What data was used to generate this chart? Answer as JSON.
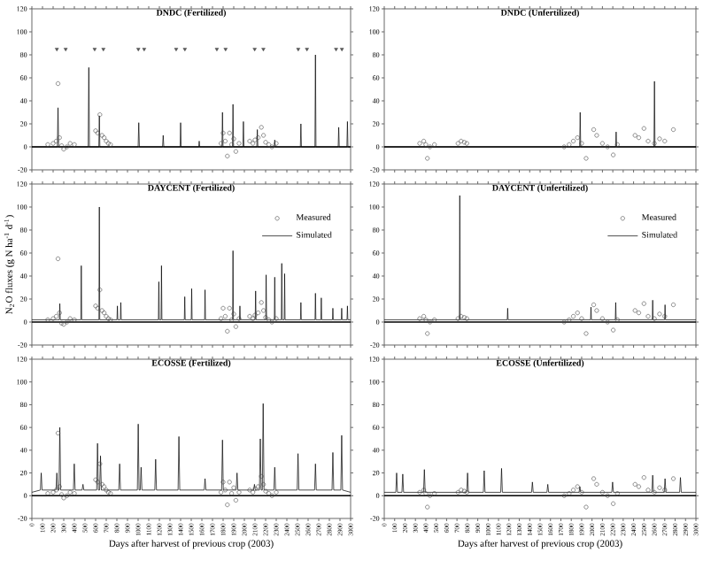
{
  "chart_data": [
    {
      "type": "line",
      "title": "DNDC (Fertilized)",
      "xlim": [
        0,
        3000
      ],
      "ylim": [
        -20,
        120
      ],
      "xticks": [
        0,
        100,
        200,
        300,
        400,
        500,
        600,
        700,
        800,
        900,
        1000,
        1100,
        1200,
        1300,
        1400,
        1500,
        1600,
        1700,
        1800,
        1900,
        2000,
        2100,
        2200,
        2300,
        2400,
        2500,
        2600,
        2700,
        2800,
        2900,
        3000
      ],
      "yticks": [
        -20,
        0,
        20,
        40,
        60,
        80,
        100,
        120
      ],
      "tick_labels": "y",
      "ref_lines": [
        {
          "axis": "y",
          "value": 0
        }
      ],
      "series": [
        {
          "type": "scatter",
          "marker": "triangle",
          "color": "#555555",
          "x": [
            235,
            318,
            591,
            673,
            1002,
            1057,
            1358,
            1440,
            1741,
            1823,
            2097,
            2179,
            2507,
            2589,
            2863,
            2918
          ],
          "values": [
            85,
            85,
            85,
            85,
            85,
            85,
            85,
            85,
            85,
            85,
            85,
            85,
            85,
            85,
            85,
            85
          ]
        },
        {
          "type": "scatter",
          "marker": "circle",
          "color": "#444444",
          "x": [
            150,
            200,
            230,
            246,
            260,
            280,
            300,
            330,
            360,
            400,
            600,
            620,
            640,
            660,
            680,
            700,
            720,
            740,
            1780,
            1800,
            1820,
            1840,
            1860,
            1880,
            1900,
            1920,
            1950,
            2050,
            2080,
            2100,
            2130,
            2160,
            2180,
            2200,
            2230,
            2260,
            2300
          ],
          "values": [
            2,
            3,
            5,
            55,
            8,
            1,
            -2,
            0,
            3,
            2,
            14,
            12,
            28,
            10,
            8,
            5,
            3,
            2,
            3,
            12,
            5,
            -8,
            12,
            2,
            7,
            -4,
            3,
            5,
            3,
            6,
            8,
            17,
            10,
            4,
            2,
            0,
            3
          ]
        },
        {
          "type": "line",
          "color": "#000000",
          "x": [
            0,
            240,
            246,
            252,
            530,
            536,
            542,
            630,
            635,
            640,
            1000,
            1006,
            1012,
            1230,
            1236,
            1242,
            1395,
            1400,
            1405,
            1570,
            1575,
            1580,
            1789,
            1794,
            1799,
            1888,
            1893,
            1898,
            1986,
            1991,
            1996,
            2117,
            2122,
            2127,
            2281,
            2286,
            2291,
            2527,
            2532,
            2537,
            2664,
            2669,
            2674,
            2883,
            2888,
            2893,
            2965,
            2970,
            2975,
            3000
          ],
          "values": [
            0,
            0,
            34,
            0,
            0,
            69,
            0,
            0,
            27,
            0,
            0,
            21,
            0,
            0,
            10,
            0,
            0,
            21,
            0,
            0,
            5,
            0,
            0,
            30,
            0,
            0,
            37,
            0,
            0,
            22,
            0,
            0,
            15,
            0,
            0,
            6,
            0,
            0,
            20,
            0,
            0,
            80,
            0,
            0,
            17,
            0,
            0,
            22,
            0,
            0
          ]
        }
      ]
    },
    {
      "type": "line",
      "title": "DNDC (Unfertilized)",
      "xlim": [
        0,
        3000
      ],
      "ylim": [
        -20,
        120
      ],
      "xticks": [
        0,
        100,
        200,
        300,
        400,
        500,
        600,
        700,
        800,
        900,
        1000,
        1100,
        1200,
        1300,
        1400,
        1500,
        1600,
        1700,
        1800,
        1900,
        2000,
        2100,
        2200,
        2300,
        2400,
        2500,
        2600,
        2700,
        2800,
        2900,
        3000
      ],
      "yticks": [
        -20,
        0,
        20,
        40,
        60,
        80,
        100,
        120
      ],
      "tick_labels": "y",
      "ref_lines": [
        {
          "axis": "y",
          "value": 0
        }
      ],
      "series": [
        {
          "type": "scatter",
          "marker": "circle",
          "color": "#444444",
          "x": [
            341,
            380,
            400,
            415,
            440,
            483,
            710,
            740,
            770,
            795,
            1732,
            1780,
            1820,
            1860,
            1900,
            1943,
            2016,
            2045,
            2100,
            2150,
            2204,
            2244,
            2414,
            2450,
            2500,
            2540,
            2600,
            2650,
            2700,
            2783
          ],
          "values": [
            3,
            5,
            2,
            -10,
            0,
            2,
            3,
            5,
            4,
            3,
            0,
            2,
            5,
            8,
            3,
            -10,
            15,
            10,
            3,
            0,
            -7,
            2,
            10,
            8,
            16,
            5,
            3,
            7,
            5,
            15
          ]
        },
        {
          "type": "line",
          "color": "#000000",
          "x": [
            0,
            1881,
            1886,
            1891,
            2227,
            2232,
            2237,
            2596,
            2601,
            2606,
            3000
          ],
          "values": [
            0,
            0,
            30,
            0,
            0,
            13,
            0,
            0,
            57,
            0,
            0
          ]
        }
      ]
    },
    {
      "type": "line",
      "title": "DAYCENT (Fertilized)",
      "ylabel": "N$_{2}$O fluxes (g N ha$^{-1}$ d$^{-1}$)",
      "xlim": [
        0,
        3000
      ],
      "ylim": [
        -20,
        120
      ],
      "xticks": [
        0,
        100,
        200,
        300,
        400,
        500,
        600,
        700,
        800,
        900,
        1000,
        1100,
        1200,
        1300,
        1400,
        1500,
        1600,
        1700,
        1800,
        1900,
        2000,
        2100,
        2200,
        2300,
        2400,
        2500,
        2600,
        2700,
        2800,
        2900,
        3000
      ],
      "yticks": [
        -20,
        0,
        20,
        40,
        60,
        80,
        100,
        120
      ],
      "tick_labels": "y",
      "legend": "top right",
      "ref_lines": [
        {
          "axis": "y",
          "value": 0
        }
      ],
      "series": [
        {
          "name": "Measured",
          "type": "scatter",
          "marker": "circle",
          "color": "#444444",
          "x": [
            150,
            200,
            230,
            246,
            260,
            280,
            300,
            330,
            360,
            400,
            600,
            620,
            640,
            660,
            680,
            700,
            720,
            740,
            1780,
            1800,
            1820,
            1840,
            1860,
            1880,
            1900,
            1920,
            1950,
            2050,
            2080,
            2100,
            2130,
            2160,
            2180,
            2200,
            2230,
            2260,
            2300
          ],
          "values": [
            2,
            3,
            5,
            55,
            8,
            -1,
            -2,
            0,
            3,
            2,
            14,
            12,
            28,
            10,
            8,
            5,
            3,
            2,
            3,
            12,
            5,
            -8,
            12,
            2,
            7,
            -4,
            3,
            5,
            3,
            6,
            8,
            17,
            10,
            4,
            2,
            0,
            3
          ]
        },
        {
          "name": "Simulated",
          "type": "line",
          "color": "#000000",
          "x": [
            0,
            259,
            263,
            267,
            461,
            465,
            469,
            631,
            635,
            639,
            801,
            805,
            809,
            833,
            837,
            841,
            1191,
            1195,
            1199,
            1216,
            1220,
            1224,
            1435,
            1439,
            1443,
            1500,
            1504,
            1508,
            1626,
            1630,
            1634,
            1889,
            1893,
            1897,
            1954,
            1958,
            1962,
            2102,
            2106,
            2110,
            2201,
            2205,
            2209,
            2282,
            2286,
            2290,
            2348,
            2352,
            2356,
            2375,
            2379,
            2383,
            2528,
            2532,
            2536,
            2665,
            2669,
            2673,
            2720,
            2724,
            2728,
            2829,
            2833,
            2837,
            2912,
            2916,
            2920,
            2966,
            2970,
            2974,
            3000
          ],
          "values": [
            2,
            2,
            16,
            2,
            2,
            49,
            2,
            2,
            100,
            2,
            2,
            14,
            2,
            2,
            17,
            2,
            2,
            35,
            2,
            2,
            49,
            2,
            2,
            22,
            2,
            2,
            29,
            2,
            2,
            28,
            2,
            2,
            62,
            2,
            2,
            14,
            2,
            2,
            27,
            2,
            2,
            41,
            2,
            2,
            39,
            2,
            2,
            51,
            2,
            2,
            42,
            2,
            2,
            17,
            2,
            2,
            25,
            2,
            2,
            21,
            2,
            2,
            12,
            2,
            2,
            12,
            2,
            2,
            14,
            2,
            2
          ]
        }
      ]
    },
    {
      "type": "line",
      "title": "DAYCENT (Unfertilized)",
      "xlim": [
        0,
        3000
      ],
      "ylim": [
        -20,
        120
      ],
      "xticks": [
        0,
        100,
        200,
        300,
        400,
        500,
        600,
        700,
        800,
        900,
        1000,
        1100,
        1200,
        1300,
        1400,
        1500,
        1600,
        1700,
        1800,
        1900,
        2000,
        2100,
        2200,
        2300,
        2400,
        2500,
        2600,
        2700,
        2800,
        2900,
        3000
      ],
      "yticks": [
        -20,
        0,
        20,
        40,
        60,
        80,
        100,
        120
      ],
      "tick_labels": "y",
      "legend": "top right",
      "ref_lines": [
        {
          "axis": "y",
          "value": 0
        }
      ],
      "series": [
        {
          "name": "Measured",
          "type": "scatter",
          "marker": "circle",
          "color": "#444444",
          "x": [
            341,
            380,
            400,
            415,
            440,
            483,
            710,
            740,
            770,
            795,
            1732,
            1780,
            1820,
            1860,
            1900,
            1943,
            2016,
            2045,
            2100,
            2150,
            2204,
            2244,
            2414,
            2450,
            2500,
            2540,
            2600,
            2650,
            2700,
            2783
          ],
          "values": [
            3,
            5,
            2,
            -10,
            0,
            2,
            3,
            5,
            4,
            3,
            0,
            2,
            5,
            8,
            3,
            -10,
            15,
            10,
            3,
            0,
            -7,
            2,
            10,
            8,
            16,
            5,
            3,
            7,
            5,
            15
          ]
        },
        {
          "name": "Simulated",
          "type": "line",
          "color": "#000000",
          "x": [
            0,
            723,
            727,
            731,
            1184,
            1188,
            1192,
            1986,
            1990,
            1994,
            2224,
            2228,
            2232,
            2580,
            2584,
            2588,
            2699,
            2703,
            2707,
            3000
          ],
          "values": [
            2,
            2,
            110,
            2,
            2,
            12,
            2,
            2,
            13,
            2,
            2,
            17,
            2,
            2,
            19,
            2,
            2,
            15,
            2,
            2
          ]
        }
      ]
    },
    {
      "type": "line",
      "title": "ECOSSE (Fertilized)",
      "xlabel": "Days after harvest of previous crop (2003)",
      "xlim": [
        0,
        3000
      ],
      "ylim": [
        -20,
        120
      ],
      "xticks": [
        0,
        100,
        200,
        300,
        400,
        500,
        600,
        700,
        800,
        900,
        1000,
        1100,
        1200,
        1300,
        1400,
        1500,
        1600,
        1700,
        1800,
        1900,
        2000,
        2100,
        2200,
        2300,
        2400,
        2500,
        2600,
        2700,
        2800,
        2900,
        3000
      ],
      "yticks": [
        -20,
        0,
        20,
        40,
        60,
        80,
        100,
        120
      ],
      "ref_lines": [
        {
          "axis": "y",
          "value": 0
        }
      ],
      "series": [
        {
          "type": "scatter",
          "marker": "circle",
          "color": "#444444",
          "x": [
            150,
            200,
            230,
            246,
            260,
            280,
            300,
            330,
            360,
            400,
            600,
            620,
            640,
            660,
            680,
            700,
            720,
            740,
            1780,
            1800,
            1820,
            1840,
            1860,
            1880,
            1900,
            1920,
            1950,
            2050,
            2080,
            2100,
            2130,
            2160,
            2180,
            2200,
            2230,
            2260,
            2300
          ],
          "values": [
            2,
            3,
            5,
            55,
            8,
            1,
            -2,
            0,
            3,
            2,
            14,
            12,
            28,
            10,
            8,
            5,
            3,
            2,
            3,
            12,
            5,
            -8,
            12,
            2,
            7,
            -4,
            3,
            5,
            3,
            6,
            8,
            17,
            10,
            4,
            2,
            0,
            3
          ]
        },
        {
          "type": "line",
          "color": "#000000",
          "x": [
            0,
            80,
            88,
            96,
            227,
            235,
            243,
            255,
            263,
            271,
            391,
            399,
            407,
            473,
            481,
            489,
            610,
            618,
            626,
            638,
            646,
            654,
            818,
            826,
            834,
            993,
            1001,
            1009,
            1020,
            1028,
            1036,
            1157,
            1165,
            1173,
            1376,
            1384,
            1392,
            1622,
            1630,
            1638,
            1786,
            1794,
            1802,
            1923,
            1931,
            1939,
            2087,
            2095,
            2103,
            2142,
            2150,
            2158,
            2169,
            2177,
            2185,
            2278,
            2286,
            2294,
            2497,
            2505,
            2513,
            2661,
            2669,
            2677,
            2825,
            2833,
            2841,
            2908,
            2916,
            2924,
            3000
          ],
          "values": [
            3,
            5,
            20,
            5,
            5,
            20,
            5,
            5,
            60,
            5,
            5,
            28,
            5,
            5,
            10,
            5,
            5,
            46,
            5,
            5,
            35,
            5,
            5,
            28,
            5,
            5,
            63,
            5,
            5,
            25,
            5,
            5,
            32,
            5,
            5,
            52,
            5,
            5,
            15,
            5,
            5,
            49,
            5,
            5,
            20,
            5,
            5,
            10,
            5,
            5,
            50,
            5,
            5,
            81,
            5,
            5,
            25,
            5,
            5,
            37,
            5,
            5,
            28,
            5,
            5,
            38,
            5,
            5,
            53,
            5,
            3
          ]
        }
      ]
    },
    {
      "type": "line",
      "title": "ECOSSE (Unfertilized)",
      "xlabel": "Days after harvest of previous crop (2003)",
      "xlim": [
        0,
        3000
      ],
      "ylim": [
        -20,
        120
      ],
      "xticks": [
        0,
        100,
        200,
        300,
        400,
        500,
        600,
        700,
        800,
        900,
        1000,
        1100,
        1200,
        1300,
        1400,
        1500,
        1600,
        1700,
        1800,
        1900,
        2000,
        2100,
        2200,
        2300,
        2400,
        2500,
        2600,
        2700,
        2800,
        2900,
        3000
      ],
      "yticks": [
        -20,
        0,
        20,
        40,
        60,
        80,
        100,
        120
      ],
      "ref_lines": [
        {
          "axis": "y",
          "value": 0
        }
      ],
      "series": [
        {
          "type": "scatter",
          "marker": "circle",
          "color": "#444444",
          "x": [
            341,
            380,
            400,
            415,
            440,
            483,
            710,
            740,
            770,
            795,
            1732,
            1780,
            1820,
            1860,
            1900,
            1943,
            2016,
            2045,
            2100,
            2150,
            2204,
            2244,
            2414,
            2450,
            2500,
            2540,
            2600,
            2650,
            2700,
            2783
          ],
          "values": [
            3,
            5,
            2,
            -10,
            0,
            2,
            3,
            5,
            4,
            3,
            0,
            2,
            5,
            8,
            3,
            -10,
            15,
            10,
            3,
            0,
            -7,
            2,
            10,
            8,
            16,
            5,
            3,
            7,
            5,
            15
          ]
        },
        {
          "type": "line",
          "color": "#000000",
          "x": [
            0,
            111,
            119,
            127,
            170,
            178,
            186,
            378,
            386,
            394,
            794,
            802,
            810,
            954,
            962,
            970,
            1121,
            1129,
            1137,
            1418,
            1426,
            1434,
            1566,
            1574,
            1582,
            1875,
            1883,
            1891,
            2190,
            2198,
            2206,
            2576,
            2584,
            2592,
            2695,
            2703,
            2711,
            2843,
            2851,
            2859,
            3000
          ],
          "values": [
            3,
            3,
            20,
            3,
            3,
            19,
            3,
            3,
            23,
            3,
            3,
            20,
            3,
            3,
            22,
            3,
            3,
            24,
            3,
            3,
            12,
            3,
            3,
            10,
            3,
            3,
            8,
            3,
            3,
            12,
            3,
            3,
            18,
            3,
            3,
            15,
            3,
            3,
            16,
            3,
            3
          ]
        }
      ]
    }
  ]
}
